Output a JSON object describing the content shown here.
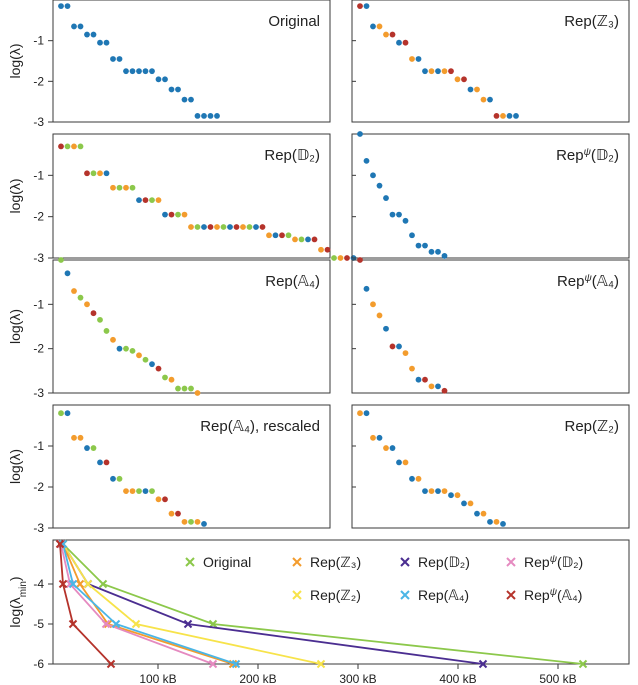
{
  "figure": {
    "palette": {
      "blue": "#1f77b4",
      "orange": "#f39c2d",
      "red": "#b5332b",
      "green": "#8cc84b"
    }
  },
  "chart_data": [
    {
      "type": "scatter",
      "title": "Original",
      "ylabel": "log(λ)",
      "ylim": [
        -3,
        0
      ],
      "yticks": [
        -1,
        -2,
        -3
      ],
      "points": [
        {
          "y": -0.15,
          "c": "blue",
          "n": 2
        },
        {
          "y": -0.65,
          "c": "blue",
          "n": 2
        },
        {
          "y": -0.85,
          "c": "blue",
          "n": 2
        },
        {
          "y": -1.05,
          "c": "blue",
          "n": 2
        },
        {
          "y": -1.45,
          "c": "blue",
          "n": 2
        },
        {
          "y": -1.75,
          "c": "blue",
          "n": 5
        },
        {
          "y": -1.95,
          "c": "blue",
          "n": 2
        },
        {
          "y": -2.2,
          "c": "blue",
          "n": 2
        },
        {
          "y": -2.45,
          "c": "blue",
          "n": 2
        },
        {
          "y": -2.85,
          "c": "blue",
          "n": 4
        }
      ]
    },
    {
      "type": "scatter",
      "title": "Rep(ℤ₃)",
      "ylabel": "log(λ)",
      "ylim": [
        -3,
        0
      ],
      "yticks": [
        -1,
        -2,
        -3
      ],
      "points": [
        {
          "y": -0.15,
          "c": "red",
          "n": 1
        },
        {
          "y": -0.15,
          "c": "blue",
          "n": 1
        },
        {
          "y": -0.65,
          "c": "blue",
          "n": 1
        },
        {
          "y": -0.65,
          "c": "orange",
          "n": 1
        },
        {
          "y": -0.85,
          "c": "orange",
          "n": 1
        },
        {
          "y": -0.85,
          "c": "red",
          "n": 1
        },
        {
          "y": -1.05,
          "c": "blue",
          "n": 1
        },
        {
          "y": -1.05,
          "c": "red",
          "n": 1
        },
        {
          "y": -1.45,
          "c": "orange",
          "n": 1
        },
        {
          "y": -1.45,
          "c": "blue",
          "n": 1
        },
        {
          "y": -1.75,
          "c": "blue",
          "n": 1
        },
        {
          "y": -1.75,
          "c": "orange",
          "n": 1
        },
        {
          "y": -1.75,
          "c": "blue",
          "n": 1
        },
        {
          "y": -1.75,
          "c": "orange",
          "n": 1
        },
        {
          "y": -1.75,
          "c": "red",
          "n": 1
        },
        {
          "y": -1.95,
          "c": "orange",
          "n": 1
        },
        {
          "y": -1.95,
          "c": "red",
          "n": 1
        },
        {
          "y": -2.2,
          "c": "blue",
          "n": 1
        },
        {
          "y": -2.2,
          "c": "orange",
          "n": 1
        },
        {
          "y": -2.45,
          "c": "orange",
          "n": 1
        },
        {
          "y": -2.45,
          "c": "blue",
          "n": 1
        },
        {
          "y": -2.85,
          "c": "red",
          "n": 1
        },
        {
          "y": -2.85,
          "c": "orange",
          "n": 1
        },
        {
          "y": -2.85,
          "c": "blue",
          "n": 2
        }
      ]
    },
    {
      "type": "scatter",
      "title": "Rep(𝔻₂)",
      "ylabel": "log(λ)",
      "ylim": [
        -3,
        0
      ],
      "yticks": [
        -1,
        -2,
        -3
      ],
      "points": [
        {
          "y": -0.3,
          "c": "red",
          "n": 1
        },
        {
          "y": -0.3,
          "c": "green",
          "n": 1
        },
        {
          "y": -0.3,
          "c": "orange",
          "n": 1
        },
        {
          "y": -0.3,
          "c": "green",
          "n": 1
        },
        {
          "y": -0.95,
          "c": "red",
          "n": 1
        },
        {
          "y": -0.95,
          "c": "green",
          "n": 1
        },
        {
          "y": -0.95,
          "c": "orange",
          "n": 1
        },
        {
          "y": -0.95,
          "c": "blue",
          "n": 1
        },
        {
          "y": -1.3,
          "c": "orange",
          "n": 1
        },
        {
          "y": -1.3,
          "c": "green",
          "n": 1
        },
        {
          "y": -1.3,
          "c": "orange",
          "n": 1
        },
        {
          "y": -1.3,
          "c": "green",
          "n": 1
        },
        {
          "y": -1.6,
          "c": "blue",
          "n": 1
        },
        {
          "y": -1.6,
          "c": "red",
          "n": 1
        },
        {
          "y": -1.6,
          "c": "green",
          "n": 1
        },
        {
          "y": -1.6,
          "c": "orange",
          "n": 1
        },
        {
          "y": -1.95,
          "c": "blue",
          "n": 1
        },
        {
          "y": -1.95,
          "c": "red",
          "n": 1
        },
        {
          "y": -1.95,
          "c": "green",
          "n": 1
        },
        {
          "y": -1.95,
          "c": "orange",
          "n": 1
        },
        {
          "y": -2.25,
          "c": "orange",
          "n": 1
        },
        {
          "y": -2.25,
          "c": "green",
          "n": 1
        },
        {
          "y": -2.25,
          "c": "blue",
          "n": 1
        },
        {
          "y": -2.25,
          "c": "red",
          "n": 1
        },
        {
          "y": -2.25,
          "c": "orange",
          "n": 1
        },
        {
          "y": -2.25,
          "c": "green",
          "n": 1
        },
        {
          "y": -2.25,
          "c": "blue",
          "n": 1
        },
        {
          "y": -2.25,
          "c": "red",
          "n": 1
        },
        {
          "y": -2.25,
          "c": "orange",
          "n": 1
        },
        {
          "y": -2.25,
          "c": "green",
          "n": 1
        },
        {
          "y": -2.25,
          "c": "blue",
          "n": 1
        },
        {
          "y": -2.25,
          "c": "red",
          "n": 1
        },
        {
          "y": -2.45,
          "c": "orange",
          "n": 1
        },
        {
          "y": -2.45,
          "c": "blue",
          "n": 1
        },
        {
          "y": -2.45,
          "c": "red",
          "n": 1
        },
        {
          "y": -2.45,
          "c": "green",
          "n": 1
        },
        {
          "y": -2.55,
          "c": "orange",
          "n": 1
        },
        {
          "y": -2.55,
          "c": "green",
          "n": 1
        },
        {
          "y": -2.55,
          "c": "blue",
          "n": 1
        },
        {
          "y": -2.55,
          "c": "red",
          "n": 1
        },
        {
          "y": -2.8,
          "c": "orange",
          "n": 1
        },
        {
          "y": -2.8,
          "c": "red",
          "n": 1
        },
        {
          "y": -3,
          "c": "green",
          "n": 1
        },
        {
          "y": -3,
          "c": "orange",
          "n": 1
        },
        {
          "y": -3,
          "c": "red",
          "n": 1
        },
        {
          "y": -3,
          "c": "blue",
          "n": 1
        }
      ]
    },
    {
      "type": "scatter",
      "title": "Rep^ψ(𝔻₂)",
      "ylabel": "log(λ)",
      "ylim": [
        -3,
        0
      ],
      "yticks": [
        -1,
        -2,
        -3
      ],
      "points": [
        {
          "y": 0,
          "c": "blue",
          "n": 1
        },
        {
          "y": -0.65,
          "c": "blue",
          "n": 1
        },
        {
          "y": -1.0,
          "c": "blue",
          "n": 1
        },
        {
          "y": -1.25,
          "c": "blue",
          "n": 1
        },
        {
          "y": -1.55,
          "c": "blue",
          "n": 1
        },
        {
          "y": -1.95,
          "c": "blue",
          "n": 2
        },
        {
          "y": -2.1,
          "c": "blue",
          "n": 1
        },
        {
          "y": -2.45,
          "c": "blue",
          "n": 1
        },
        {
          "y": -2.7,
          "c": "blue",
          "n": 2
        },
        {
          "y": -2.85,
          "c": "blue",
          "n": 2
        },
        {
          "y": -2.95,
          "c": "blue",
          "n": 1
        }
      ]
    },
    {
      "type": "scatter",
      "title": "Rep(𝔸₄)",
      "ylabel": "log(λ)",
      "ylim": [
        -3,
        0
      ],
      "yticks": [
        -1,
        -2,
        -3
      ],
      "points": [
        {
          "y": 0,
          "c": "green",
          "n": 1
        },
        {
          "y": -0.3,
          "c": "blue",
          "n": 1
        },
        {
          "y": -0.7,
          "c": "orange",
          "n": 1
        },
        {
          "y": -0.85,
          "c": "green",
          "n": 1
        },
        {
          "y": -1.0,
          "c": "orange",
          "n": 1
        },
        {
          "y": -1.2,
          "c": "red",
          "n": 1
        },
        {
          "y": -1.35,
          "c": "green",
          "n": 1
        },
        {
          "y": -1.6,
          "c": "green",
          "n": 1
        },
        {
          "y": -1.8,
          "c": "orange",
          "n": 1
        },
        {
          "y": -2.0,
          "c": "blue",
          "n": 1
        },
        {
          "y": -2.0,
          "c": "green",
          "n": 1
        },
        {
          "y": -2.05,
          "c": "green",
          "n": 1
        },
        {
          "y": -2.15,
          "c": "orange",
          "n": 1
        },
        {
          "y": -2.25,
          "c": "green",
          "n": 1
        },
        {
          "y": -2.35,
          "c": "blue",
          "n": 1
        },
        {
          "y": -2.45,
          "c": "red",
          "n": 1
        },
        {
          "y": -2.65,
          "c": "green",
          "n": 1
        },
        {
          "y": -2.7,
          "c": "orange",
          "n": 1
        },
        {
          "y": -2.9,
          "c": "green",
          "n": 3
        },
        {
          "y": -3.0,
          "c": "orange",
          "n": 1
        }
      ]
    },
    {
      "type": "scatter",
      "title": "Rep^ψ(𝔸₄)",
      "ylabel": "log(λ)",
      "ylim": [
        -3,
        0
      ],
      "yticks": [
        -1,
        -2,
        -3
      ],
      "points": [
        {
          "y": 0,
          "c": "red",
          "n": 1
        },
        {
          "y": -0.65,
          "c": "blue",
          "n": 1
        },
        {
          "y": -1.0,
          "c": "orange",
          "n": 1
        },
        {
          "y": -1.25,
          "c": "orange",
          "n": 1
        },
        {
          "y": -1.55,
          "c": "blue",
          "n": 1
        },
        {
          "y": -1.95,
          "c": "red",
          "n": 1
        },
        {
          "y": -1.95,
          "c": "blue",
          "n": 1
        },
        {
          "y": -2.1,
          "c": "orange",
          "n": 1
        },
        {
          "y": -2.45,
          "c": "orange",
          "n": 1
        },
        {
          "y": -2.7,
          "c": "blue",
          "n": 1
        },
        {
          "y": -2.7,
          "c": "red",
          "n": 1
        },
        {
          "y": -2.85,
          "c": "orange",
          "n": 1
        },
        {
          "y": -2.85,
          "c": "blue",
          "n": 1
        },
        {
          "y": -2.95,
          "c": "red",
          "n": 1
        }
      ]
    },
    {
      "type": "scatter",
      "title": "Rep(𝔸₄), rescaled",
      "ylabel": "log(λ)",
      "ylim": [
        -3,
        0
      ],
      "yticks": [
        -1,
        -2,
        -3
      ],
      "points": [
        {
          "y": -0.2,
          "c": "green",
          "n": 1
        },
        {
          "y": -0.2,
          "c": "blue",
          "n": 1
        },
        {
          "y": -0.8,
          "c": "orange",
          "n": 2
        },
        {
          "y": -1.05,
          "c": "blue",
          "n": 1
        },
        {
          "y": -1.05,
          "c": "green",
          "n": 1
        },
        {
          "y": -1.4,
          "c": "blue",
          "n": 1
        },
        {
          "y": -1.4,
          "c": "red",
          "n": 1
        },
        {
          "y": -1.8,
          "c": "blue",
          "n": 1
        },
        {
          "y": -1.8,
          "c": "green",
          "n": 1
        },
        {
          "y": -2.1,
          "c": "orange",
          "n": 2
        },
        {
          "y": -2.1,
          "c": "green",
          "n": 1
        },
        {
          "y": -2.1,
          "c": "blue",
          "n": 1
        },
        {
          "y": -2.1,
          "c": "green",
          "n": 1
        },
        {
          "y": -2.3,
          "c": "orange",
          "n": 1
        },
        {
          "y": -2.3,
          "c": "red",
          "n": 1
        },
        {
          "y": -2.65,
          "c": "orange",
          "n": 1
        },
        {
          "y": -2.65,
          "c": "red",
          "n": 1
        },
        {
          "y": -2.85,
          "c": "orange",
          "n": 1
        },
        {
          "y": -2.85,
          "c": "green",
          "n": 1
        },
        {
          "y": -2.85,
          "c": "orange",
          "n": 1
        },
        {
          "y": -2.9,
          "c": "blue",
          "n": 1
        }
      ]
    },
    {
      "type": "scatter",
      "title": "Rep(ℤ₂)",
      "ylabel": "log(λ)",
      "ylim": [
        -3,
        0
      ],
      "yticks": [
        -1,
        -2,
        -3
      ],
      "points": [
        {
          "y": -0.2,
          "c": "orange",
          "n": 1
        },
        {
          "y": -0.2,
          "c": "blue",
          "n": 1
        },
        {
          "y": -0.8,
          "c": "orange",
          "n": 1
        },
        {
          "y": -0.8,
          "c": "blue",
          "n": 1
        },
        {
          "y": -1.05,
          "c": "orange",
          "n": 1
        },
        {
          "y": -1.05,
          "c": "blue",
          "n": 1
        },
        {
          "y": -1.4,
          "c": "blue",
          "n": 1
        },
        {
          "y": -1.4,
          "c": "orange",
          "n": 1
        },
        {
          "y": -1.8,
          "c": "blue",
          "n": 1
        },
        {
          "y": -1.8,
          "c": "orange",
          "n": 1
        },
        {
          "y": -2.1,
          "c": "blue",
          "n": 1
        },
        {
          "y": -2.1,
          "c": "orange",
          "n": 1
        },
        {
          "y": -2.1,
          "c": "blue",
          "n": 1
        },
        {
          "y": -2.1,
          "c": "orange",
          "n": 1
        },
        {
          "y": -2.2,
          "c": "blue",
          "n": 1
        },
        {
          "y": -2.2,
          "c": "orange",
          "n": 1
        },
        {
          "y": -2.4,
          "c": "blue",
          "n": 1
        },
        {
          "y": -2.4,
          "c": "orange",
          "n": 1
        },
        {
          "y": -2.65,
          "c": "blue",
          "n": 1
        },
        {
          "y": -2.65,
          "c": "orange",
          "n": 1
        },
        {
          "y": -2.85,
          "c": "blue",
          "n": 1
        },
        {
          "y": -2.85,
          "c": "orange",
          "n": 1
        },
        {
          "y": -2.9,
          "c": "blue",
          "n": 1
        }
      ]
    },
    {
      "type": "line",
      "ylabel": "log(λ_min)",
      "xlim": [
        0,
        550
      ],
      "ylim": [
        -6,
        -3
      ],
      "yticks": [
        -4,
        -5,
        -6
      ],
      "xticks": [
        100,
        200,
        300,
        400,
        500
      ],
      "xtick_labels": [
        "100 kB",
        "200 kB",
        "300 kB",
        "400 kB",
        "500 kB"
      ],
      "series": [
        {
          "name": "Original",
          "color": "#8cc84b",
          "x": [
            0,
            5,
            45,
            155,
            525
          ],
          "y": [
            -3,
            -3,
            -4,
            -5,
            -6
          ]
        },
        {
          "name": "Rep(ℤ₃)",
          "color": "#f39c2d",
          "x": [
            0,
            5,
            22,
            50,
            175
          ],
          "y": [
            -3,
            -3,
            -4,
            -5,
            -6
          ]
        },
        {
          "name": "Rep(𝔻₂)",
          "color": "#4b2e91",
          "x": [
            0,
            5,
            30,
            130,
            425
          ],
          "y": [
            -3,
            -3,
            -4,
            -5,
            -6
          ]
        },
        {
          "name": "Rep^ψ(𝔻₂)",
          "color": "#e58ac0",
          "x": [
            0,
            3,
            12,
            48,
            155
          ],
          "y": [
            -3,
            -3,
            -4,
            -5,
            -6
          ]
        },
        {
          "name": "Rep(ℤ₂)",
          "color": "#f7e34a",
          "x": [
            0,
            5,
            30,
            78,
            263
          ],
          "y": [
            -3,
            -3,
            -4,
            -5,
            -6
          ]
        },
        {
          "name": "Rep(𝔸₄)",
          "color": "#4bb6e6",
          "x": [
            0,
            5,
            15,
            58,
            178
          ],
          "y": [
            -3,
            -3,
            -4,
            -5,
            -6
          ]
        },
        {
          "name": "Rep^ψ(𝔸₄)",
          "color": "#b5332b",
          "x": [
            0,
            2,
            5,
            15,
            53
          ],
          "y": [
            -3,
            -3,
            -4,
            -5,
            -6
          ]
        }
      ]
    }
  ]
}
